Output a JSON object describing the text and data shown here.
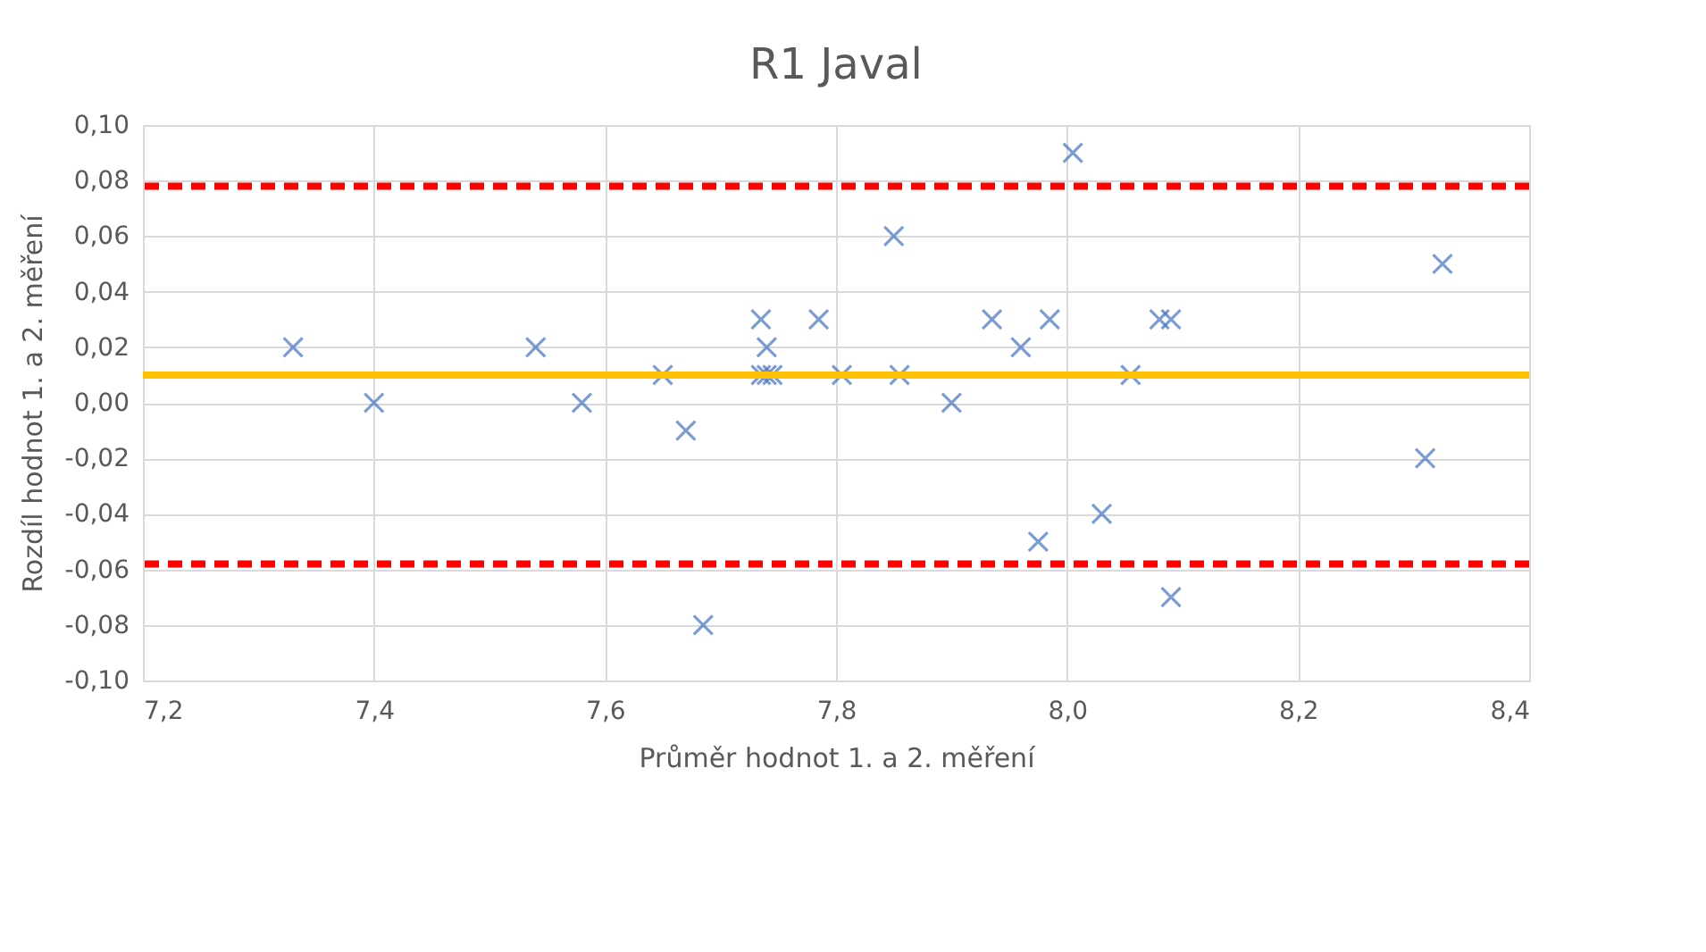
{
  "chart_data": {
    "type": "scatter",
    "title": "R1 Javal",
    "xlabel": "Průměr hodnot 1. a 2. měření",
    "ylabel": "Rozdíl hodnot 1. a 2. měření",
    "x": [
      7.33,
      7.4,
      7.54,
      7.58,
      7.65,
      7.67,
      7.685,
      7.735,
      7.735,
      7.74,
      7.74,
      7.745,
      7.785,
      7.805,
      7.85,
      7.855,
      7.9,
      7.935,
      7.96,
      7.975,
      7.985,
      8.005,
      8.03,
      8.055,
      8.08,
      8.09,
      8.09,
      8.31,
      8.325
    ],
    "series": [
      {
        "color": "#4472c4",
        "values": [
          0.02,
          0.0,
          0.02,
          0.0,
          0.01,
          -0.01,
          -0.08,
          0.03,
          0.01,
          0.02,
          0.01,
          0.01,
          0.03,
          0.01,
          0.06,
          0.01,
          0.0,
          0.03,
          0.02,
          -0.05,
          0.03,
          0.09,
          -0.04,
          0.01,
          0.03,
          0.03,
          -0.07,
          -0.02,
          0.05
        ]
      }
    ],
    "marker": "cross",
    "xlim": [
      7.2,
      8.4
    ],
    "xticks": [
      {
        "value": 7.2,
        "label": "7,2"
      },
      {
        "value": 7.4,
        "label": "7,4"
      },
      {
        "value": 7.6,
        "label": "7,6"
      },
      {
        "value": 7.8,
        "label": "7,8"
      },
      {
        "value": 8.0,
        "label": "8,0"
      },
      {
        "value": 8.2,
        "label": "8,2"
      },
      {
        "value": 8.4,
        "label": "8,4"
      }
    ],
    "ylim": [
      -0.1,
      0.1
    ],
    "yticks": [
      {
        "value": -0.1,
        "label": "-0,10"
      },
      {
        "value": -0.08,
        "label": "-0,08"
      },
      {
        "value": -0.06,
        "label": "-0,06"
      },
      {
        "value": -0.04,
        "label": "-0,04"
      },
      {
        "value": -0.02,
        "label": "-0,02"
      },
      {
        "value": 0,
        "label": "0,00"
      },
      {
        "value": 0.02,
        "label": "0,02"
      },
      {
        "value": 0.04,
        "label": "0,04"
      },
      {
        "value": 0.06,
        "label": "0,06"
      },
      {
        "value": 0.08,
        "label": "0,08"
      },
      {
        "value": 0.1,
        "label": "0,10"
      }
    ],
    "grid": true,
    "ref_lines": [
      {
        "axis": "y",
        "value": 0.078,
        "color": "#ff0000",
        "line_style": "dashed"
      },
      {
        "axis": "y",
        "value": 0.01,
        "color": "#ffc000",
        "line_style": "solid"
      },
      {
        "axis": "y",
        "value": -0.058,
        "color": "#ff0000",
        "line_style": "dashed"
      }
    ]
  }
}
